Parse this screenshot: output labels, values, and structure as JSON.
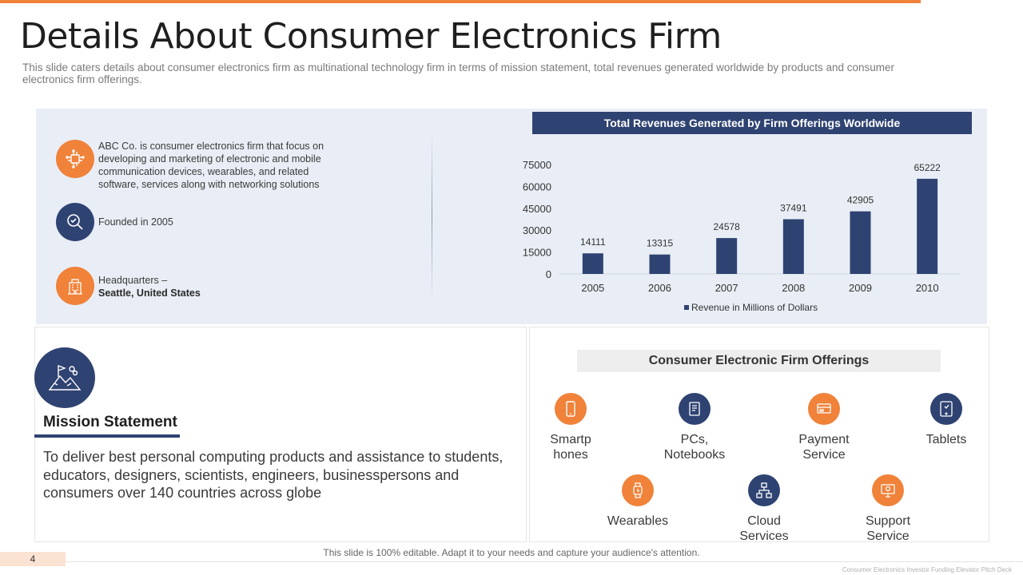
{
  "slide": {
    "title": "Details About Consumer Electronics Firm",
    "subtitle": "This slide caters details about consumer electronics firm as multinational technology firm in terms of mission statement, total revenues generated worldwide by products and consumer electronics firm offerings.",
    "page_number": "4",
    "footer_note": "This slide is 100% editable. Adapt it to your needs and capture your audience's attention.",
    "deck_name": "Consumer Electronics Investor Funding Elevator Pitch Deck"
  },
  "company": {
    "description": "ABC Co. is consumer electronics firm that focus on developing  and marketing of electronic and mobile communication devices,  wearables, and related software, services along with networking solutions",
    "founded": "Founded  in 2005",
    "hq_label": "Headquarters  –",
    "hq_value": "Seattle, United States"
  },
  "chart_data": {
    "type": "bar",
    "title": "Total Revenues Generated by Firm Offerings Worldwide",
    "categories": [
      "2005",
      "2006",
      "2007",
      "2008",
      "2009",
      "2010"
    ],
    "series": [
      {
        "name": "Revenue in Millions of Dollars",
        "values": [
          14111,
          13315,
          24578,
          37491,
          42905,
          65222
        ]
      }
    ],
    "yticks": [
      0,
      15000,
      30000,
      45000,
      60000,
      75000
    ],
    "ylim": [
      0,
      75000
    ],
    "xlabel": "",
    "ylabel": "",
    "legend": "bottom",
    "grid": false,
    "color": "#2f4372"
  },
  "mission": {
    "title": "Mission Statement",
    "text": "To deliver best personal computing products and assistance to students, educators, designers, scientists, engineers, businesspersons and consumers over 140 countries across globe"
  },
  "offerings": {
    "title": "Consumer Electronic Firm Offerings",
    "items": [
      {
        "label": "Smartp\nhones",
        "icon": "smartphone-icon",
        "color": "#f0823a"
      },
      {
        "label": "PCs,\nNotebooks",
        "icon": "notebook-icon",
        "color": "#2f4372"
      },
      {
        "label": "Payment\nService",
        "icon": "payment-icon",
        "color": "#f0823a"
      },
      {
        "label": "Tablets",
        "icon": "tablet-icon",
        "color": "#2f4372"
      },
      {
        "label": "Wearables",
        "icon": "watch-icon",
        "color": "#f0823a"
      },
      {
        "label": "Cloud\nServices",
        "icon": "cloud-network-icon",
        "color": "#2f4372"
      },
      {
        "label": "Support\nService",
        "icon": "support-icon",
        "color": "#f0823a"
      }
    ]
  },
  "colors": {
    "accent": "#f0823a",
    "navy": "#2f4372",
    "panel": "#e9eef6"
  }
}
